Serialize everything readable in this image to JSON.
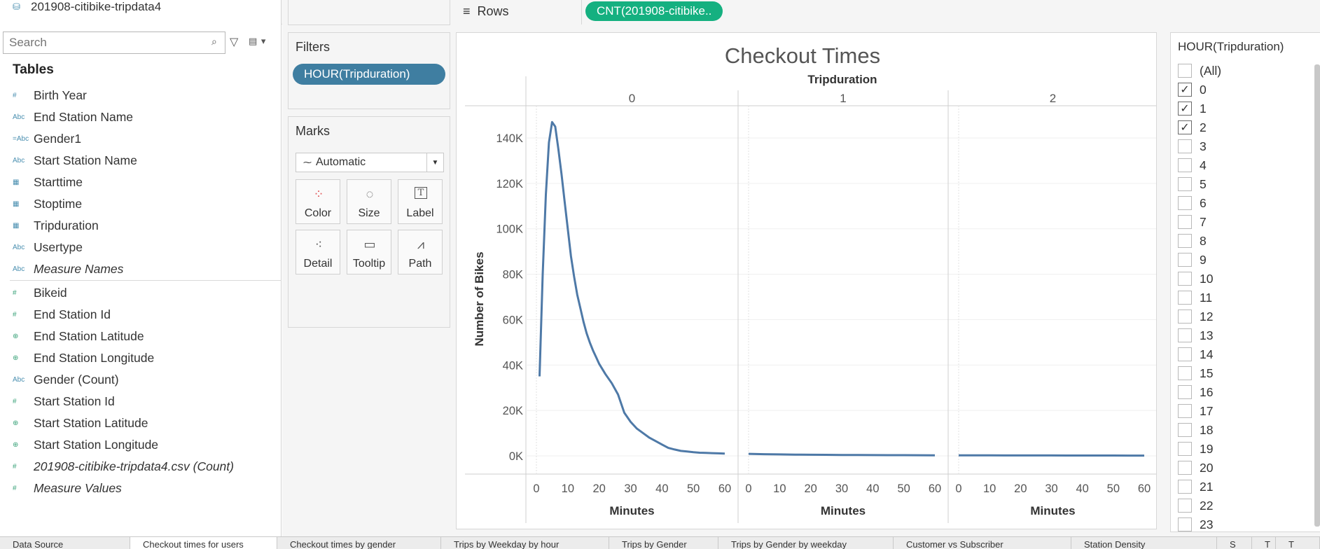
{
  "datasource": {
    "name": "201908-citibike-tripdata4"
  },
  "search": {
    "placeholder": "Search"
  },
  "tables_title": "Tables",
  "dimensions": [
    {
      "label": "Birth Year",
      "icon": "#",
      "italic": false
    },
    {
      "label": "End Station Name",
      "icon": "Abc",
      "italic": false
    },
    {
      "label": "Gender1",
      "icon": "=Abc",
      "italic": false
    },
    {
      "label": "Start Station Name",
      "icon": "Abc",
      "italic": false
    },
    {
      "label": "Starttime",
      "icon": "cal",
      "italic": false
    },
    {
      "label": "Stoptime",
      "icon": "cal",
      "italic": false
    },
    {
      "label": "Tripduration",
      "icon": "cal",
      "italic": false
    },
    {
      "label": "Usertype",
      "icon": "Abc",
      "italic": false
    },
    {
      "label": "Measure Names",
      "icon": "Abc",
      "italic": true
    }
  ],
  "measures": [
    {
      "label": "Bikeid",
      "icon": "#",
      "italic": false
    },
    {
      "label": "End Station Id",
      "icon": "#",
      "italic": false
    },
    {
      "label": "End Station Latitude",
      "icon": "globe",
      "italic": false
    },
    {
      "label": "End Station Longitude",
      "icon": "globe",
      "italic": false
    },
    {
      "label": "Gender (Count)",
      "icon": "Abc",
      "italic": false
    },
    {
      "label": "Start Station Id",
      "icon": "#",
      "italic": false
    },
    {
      "label": "Start Station Latitude",
      "icon": "globe",
      "italic": false
    },
    {
      "label": "Start Station Longitude",
      "icon": "globe",
      "italic": false
    },
    {
      "label": "201908-citibike-tripdata4.csv (Count)",
      "icon": "#",
      "italic": true
    },
    {
      "label": "Measure Values",
      "icon": "#",
      "italic": true
    }
  ],
  "rows_shelf": {
    "label": "Rows",
    "pill": "CNT(201908-citibike.."
  },
  "filters": {
    "title": "Filters",
    "pill": "HOUR(Tripduration)"
  },
  "marks": {
    "title": "Marks",
    "type": "Automatic",
    "buttons": [
      {
        "label": "Color",
        "icon": "color-icon"
      },
      {
        "label": "Size",
        "icon": "size-icon"
      },
      {
        "label": "Label",
        "icon": "label-icon"
      },
      {
        "label": "Detail",
        "icon": "detail-icon"
      },
      {
        "label": "Tooltip",
        "icon": "tooltip-icon"
      },
      {
        "label": "Path",
        "icon": "path-icon"
      }
    ]
  },
  "quick_filter": {
    "title": "HOUR(Tripduration)",
    "items": [
      {
        "label": "(All)",
        "checked": false
      },
      {
        "label": "0",
        "checked": true
      },
      {
        "label": "1",
        "checked": true
      },
      {
        "label": "2",
        "checked": true
      },
      {
        "label": "3",
        "checked": false
      },
      {
        "label": "4",
        "checked": false
      },
      {
        "label": "5",
        "checked": false
      },
      {
        "label": "6",
        "checked": false
      },
      {
        "label": "7",
        "checked": false
      },
      {
        "label": "8",
        "checked": false
      },
      {
        "label": "9",
        "checked": false
      },
      {
        "label": "10",
        "checked": false
      },
      {
        "label": "11",
        "checked": false
      },
      {
        "label": "12",
        "checked": false
      },
      {
        "label": "13",
        "checked": false
      },
      {
        "label": "14",
        "checked": false
      },
      {
        "label": "15",
        "checked": false
      },
      {
        "label": "16",
        "checked": false
      },
      {
        "label": "17",
        "checked": false
      },
      {
        "label": "18",
        "checked": false
      },
      {
        "label": "19",
        "checked": false
      },
      {
        "label": "20",
        "checked": false
      },
      {
        "label": "21",
        "checked": false
      },
      {
        "label": "22",
        "checked": false
      },
      {
        "label": "23",
        "checked": false
      }
    ]
  },
  "chart_data": {
    "type": "line",
    "title": "Checkout Times",
    "column_header": "Tripduration",
    "panels": [
      "0",
      "1",
      "2"
    ],
    "xlabel": "Minutes",
    "ylabel": "Number of Bikes",
    "xticks": [
      "0",
      "10",
      "20",
      "30",
      "40",
      "50",
      "60"
    ],
    "yticks": [
      "0K",
      "20K",
      "40K",
      "60K",
      "80K",
      "100K",
      "120K",
      "140K"
    ],
    "xlim": [
      0,
      60
    ],
    "ylim": [
      0,
      150000
    ],
    "grid": true,
    "color": "#4e79a7",
    "series": [
      {
        "panel": "0",
        "x": [
          1,
          2,
          3,
          4,
          5,
          6,
          7,
          8,
          9,
          10,
          11,
          12,
          13,
          14,
          15,
          16,
          17,
          18,
          19,
          20,
          22,
          24,
          26,
          28,
          30,
          32,
          34,
          36,
          38,
          40,
          42,
          44,
          46,
          48,
          50,
          52,
          54,
          56,
          58,
          60
        ],
        "y": [
          35000,
          80000,
          115000,
          138000,
          147000,
          145000,
          135000,
          124000,
          112000,
          100000,
          88000,
          79000,
          71000,
          65000,
          59000,
          54000,
          50000,
          46500,
          43500,
          40500,
          36000,
          32000,
          27000,
          19000,
          15000,
          12000,
          10000,
          8000,
          6500,
          5000,
          3500,
          2800,
          2200,
          1900,
          1600,
          1400,
          1300,
          1200,
          1100,
          1000
        ]
      },
      {
        "panel": "1",
        "x": [
          0,
          5,
          10,
          15,
          20,
          25,
          30,
          35,
          40,
          45,
          50,
          55,
          60
        ],
        "y": [
          900,
          750,
          650,
          560,
          500,
          450,
          410,
          380,
          350,
          320,
          300,
          280,
          260
        ]
      },
      {
        "panel": "2",
        "x": [
          0,
          5,
          10,
          15,
          20,
          25,
          30,
          35,
          40,
          45,
          50,
          55,
          60
        ],
        "y": [
          250,
          230,
          210,
          200,
          190,
          180,
          170,
          160,
          150,
          145,
          140,
          135,
          130
        ]
      }
    ]
  },
  "sheet_tabs": [
    "Data Source",
    "Checkout times for users",
    "Checkout times by gender",
    "Trips by Weekday by hour",
    "Trips by Gender",
    "Trips by Gender by weekday",
    "Customer vs Subscriber",
    "Station Density",
    "S",
    "T",
    "T"
  ]
}
